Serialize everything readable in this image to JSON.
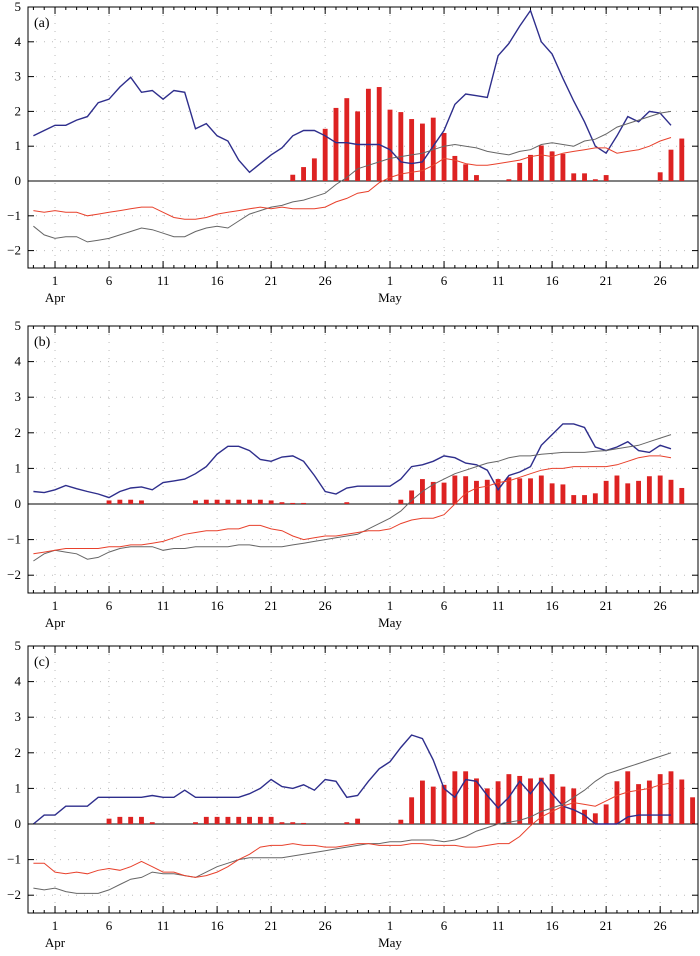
{
  "colors": {
    "blue": "#2e2e8c",
    "red": "#e8412c",
    "gray": "#666666",
    "bar": "#dd2222",
    "grid": "#bbbbbb",
    "axis": "#000000"
  },
  "chart_data": [
    {
      "type": "line+bar",
      "panel_label": "(a)",
      "ylim": [
        -2.5,
        5
      ],
      "yticks": [
        "5",
        "4",
        "3",
        "2",
        "1",
        "0",
        "−1",
        "−2"
      ],
      "xtick_labels": [
        "1",
        "6",
        "11",
        "16",
        "21",
        "26",
        "1",
        "6",
        "11",
        "16",
        "21",
        "26"
      ],
      "month_labels": [
        "Apr",
        "May"
      ],
      "x_days_note": "x index 0 = Mar 30, daily steps to May 29",
      "series": [
        {
          "name": "blue",
          "color": "#2e2e8c",
          "values": [
            1.3,
            1.45,
            1.6,
            1.6,
            1.75,
            1.85,
            2.25,
            2.35,
            2.7,
            2.98,
            2.55,
            2.6,
            2.35,
            2.6,
            2.55,
            1.5,
            1.65,
            1.3,
            1.15,
            0.6,
            0.25,
            0.5,
            0.75,
            0.95,
            1.3,
            1.45,
            1.45,
            1.3,
            1.1,
            1.1,
            1.05,
            1.05,
            1.05,
            0.9,
            0.55,
            0.5,
            0.55,
            1.0,
            1.45,
            2.2,
            2.5,
            2.45,
            2.4,
            3.6,
            3.95,
            4.45,
            4.9,
            4.0,
            3.65,
            2.95,
            2.3,
            1.7,
            1.0,
            0.8,
            1.3,
            1.85,
            1.7,
            2.0,
            1.95,
            1.6
          ]
        },
        {
          "name": "gray",
          "color": "#666666",
          "values": [
            -1.3,
            -1.55,
            -1.65,
            -1.6,
            -1.6,
            -1.75,
            -1.7,
            -1.65,
            -1.55,
            -1.45,
            -1.35,
            -1.4,
            -1.5,
            -1.6,
            -1.6,
            -1.45,
            -1.35,
            -1.3,
            -1.35,
            -1.15,
            -0.95,
            -0.85,
            -0.75,
            -0.7,
            -0.6,
            -0.55,
            -0.45,
            -0.35,
            -0.1,
            0.1,
            0.35,
            0.45,
            0.55,
            0.65,
            0.7,
            0.75,
            0.8,
            0.9,
            1.0,
            1.05,
            1.0,
            0.95,
            0.85,
            0.8,
            0.75,
            0.85,
            0.9,
            1.05,
            1.1,
            1.05,
            1.0,
            1.15,
            1.2,
            1.35,
            1.55,
            1.65,
            1.75,
            1.85,
            1.95,
            2.0
          ]
        },
        {
          "name": "red",
          "color": "#e8412c",
          "values": [
            -0.85,
            -0.9,
            -0.85,
            -0.9,
            -0.9,
            -1.0,
            -0.95,
            -0.9,
            -0.85,
            -0.8,
            -0.75,
            -0.75,
            -0.9,
            -1.05,
            -1.1,
            -1.1,
            -1.05,
            -0.95,
            -0.9,
            -0.85,
            -0.8,
            -0.75,
            -0.8,
            -0.75,
            -0.8,
            -0.8,
            -0.8,
            -0.75,
            -0.6,
            -0.5,
            -0.35,
            -0.3,
            -0.05,
            0.1,
            0.2,
            0.25,
            0.3,
            0.45,
            0.65,
            0.6,
            0.5,
            0.45,
            0.45,
            0.5,
            0.55,
            0.6,
            0.7,
            0.75,
            0.7,
            0.8,
            0.85,
            0.9,
            0.95,
            0.95,
            0.8,
            0.85,
            0.9,
            1.0,
            1.15,
            1.25
          ]
        }
      ],
      "bars": [
        0,
        0,
        0,
        0,
        0,
        0,
        0,
        0,
        0,
        0,
        0,
        0,
        0,
        0,
        0,
        0,
        0,
        0,
        0,
        0,
        0,
        0,
        0,
        0,
        0.18,
        0.4,
        0.65,
        1.5,
        2.1,
        2.38,
        2.0,
        2.65,
        2.7,
        2.05,
        1.98,
        1.78,
        1.65,
        1.82,
        1.38,
        0.72,
        0.48,
        0.17,
        0,
        0,
        0.05,
        0.52,
        0.75,
        1.02,
        0.85,
        0.78,
        0.22,
        0.22,
        0.05,
        0.17,
        0,
        0,
        0,
        0,
        0.25,
        0.9,
        1.22
      ]
    },
    {
      "type": "line+bar",
      "panel_label": "(b)",
      "ylim": [
        -2.5,
        5
      ],
      "yticks": [
        "5",
        "4",
        "3",
        "2",
        "1",
        "0",
        "−1",
        "−2"
      ],
      "xtick_labels": [
        "1",
        "6",
        "11",
        "16",
        "21",
        "26",
        "1",
        "6",
        "11",
        "16",
        "21",
        "26"
      ],
      "month_labels": [
        "Apr",
        "May"
      ],
      "series": [
        {
          "name": "blue",
          "color": "#2e2e8c",
          "values": [
            0.35,
            0.32,
            0.4,
            0.52,
            0.43,
            0.35,
            0.28,
            0.18,
            0.35,
            0.45,
            0.48,
            0.4,
            0.6,
            0.65,
            0.7,
            0.85,
            1.05,
            1.4,
            1.62,
            1.62,
            1.5,
            1.25,
            1.2,
            1.32,
            1.35,
            1.2,
            0.8,
            0.35,
            0.28,
            0.45,
            0.5,
            0.5,
            0.5,
            0.5,
            0.7,
            1.05,
            1.1,
            1.2,
            1.35,
            1.3,
            1.15,
            1.1,
            0.95,
            0.4,
            0.8,
            0.9,
            1.05,
            1.65,
            1.95,
            2.25,
            2.25,
            2.15,
            1.6,
            1.5,
            1.6,
            1.75,
            1.5,
            1.45,
            1.65,
            1.55
          ]
        },
        {
          "name": "gray",
          "color": "#666666",
          "values": [
            -1.6,
            -1.4,
            -1.3,
            -1.35,
            -1.4,
            -1.55,
            -1.5,
            -1.35,
            -1.25,
            -1.2,
            -1.2,
            -1.2,
            -1.3,
            -1.25,
            -1.25,
            -1.2,
            -1.2,
            -1.2,
            -1.2,
            -1.15,
            -1.15,
            -1.2,
            -1.2,
            -1.2,
            -1.15,
            -1.1,
            -1.05,
            -1.0,
            -0.95,
            -0.9,
            -0.85,
            -0.7,
            -0.55,
            -0.4,
            -0.2,
            0.1,
            0.35,
            0.55,
            0.7,
            0.85,
            0.95,
            1.05,
            1.15,
            1.2,
            1.3,
            1.35,
            1.35,
            1.4,
            1.42,
            1.45,
            1.45,
            1.45,
            1.48,
            1.5,
            1.55,
            1.6,
            1.65,
            1.75,
            1.85,
            1.95
          ]
        },
        {
          "name": "red",
          "color": "#e8412c",
          "values": [
            -1.4,
            -1.35,
            -1.3,
            -1.25,
            -1.25,
            -1.25,
            -1.25,
            -1.2,
            -1.2,
            -1.15,
            -1.15,
            -1.1,
            -1.05,
            -0.95,
            -0.85,
            -0.8,
            -0.75,
            -0.75,
            -0.7,
            -0.7,
            -0.6,
            -0.6,
            -0.7,
            -0.75,
            -0.9,
            -1.0,
            -0.95,
            -0.9,
            -0.9,
            -0.85,
            -0.8,
            -0.75,
            -0.75,
            -0.7,
            -0.55,
            -0.45,
            -0.4,
            -0.4,
            -0.3,
            0.0,
            0.3,
            0.45,
            0.5,
            0.6,
            0.65,
            0.75,
            0.85,
            0.95,
            1.0,
            1.0,
            1.05,
            1.05,
            1.05,
            1.05,
            1.1,
            1.2,
            1.3,
            1.35,
            1.35,
            1.3
          ]
        }
      ],
      "bars": [
        0,
        0,
        0,
        0,
        0,
        0,
        0,
        0.1,
        0.12,
        0.12,
        0.1,
        0,
        0,
        0,
        0,
        0.1,
        0.12,
        0.12,
        0.12,
        0.12,
        0.12,
        0.12,
        0.1,
        0.05,
        0.03,
        0.03,
        0,
        0,
        0,
        0.05,
        0,
        0,
        0,
        0,
        0.12,
        0.38,
        0.7,
        0.62,
        0.6,
        0.8,
        0.78,
        0.65,
        0.68,
        0.7,
        0.75,
        0.72,
        0.72,
        0.8,
        0.58,
        0.55,
        0.25,
        0.25,
        0.3,
        0.65,
        0.8,
        0.58,
        0.65,
        0.78,
        0.8,
        0.68,
        0.45
      ]
    },
    {
      "type": "line+bar",
      "panel_label": "(c)",
      "ylim": [
        -2.5,
        5
      ],
      "yticks": [
        "5",
        "4",
        "3",
        "2",
        "1",
        "0",
        "−1",
        "−2"
      ],
      "xtick_labels": [
        "1",
        "6",
        "11",
        "16",
        "21",
        "26",
        "1",
        "6",
        "11",
        "16",
        "21",
        "26"
      ],
      "month_labels": [
        "Apr",
        "May"
      ],
      "series": [
        {
          "name": "blue",
          "color": "#2e2e8c",
          "values": [
            0.0,
            0.25,
            0.25,
            0.5,
            0.5,
            0.5,
            0.75,
            0.75,
            0.75,
            0.75,
            0.75,
            0.8,
            0.75,
            0.75,
            0.95,
            0.75,
            0.75,
            0.75,
            0.75,
            0.75,
            0.85,
            1.0,
            1.25,
            1.05,
            1.0,
            1.1,
            0.95,
            1.25,
            1.2,
            0.75,
            0.8,
            1.2,
            1.55,
            1.75,
            2.15,
            2.5,
            2.4,
            1.8,
            1.0,
            0.75,
            1.25,
            1.2,
            0.8,
            0.45,
            0.75,
            1.2,
            0.85,
            1.25,
            0.85,
            0.5,
            0.4,
            0.25,
            0.0,
            0.0,
            0.0,
            0.2,
            0.25,
            0.25,
            0.25,
            0.25
          ]
        },
        {
          "name": "gray",
          "color": "#666666",
          "values": [
            -1.8,
            -1.85,
            -1.8,
            -1.9,
            -1.95,
            -1.95,
            -1.95,
            -1.85,
            -1.7,
            -1.55,
            -1.5,
            -1.35,
            -1.4,
            -1.4,
            -1.45,
            -1.5,
            -1.35,
            -1.2,
            -1.1,
            -1.0,
            -0.95,
            -0.95,
            -0.95,
            -0.95,
            -0.9,
            -0.85,
            -0.8,
            -0.75,
            -0.7,
            -0.65,
            -0.6,
            -0.55,
            -0.55,
            -0.5,
            -0.5,
            -0.45,
            -0.45,
            -0.45,
            -0.5,
            -0.45,
            -0.35,
            -0.2,
            -0.1,
            0.0,
            0.05,
            0.1,
            0.2,
            0.35,
            0.45,
            0.55,
            0.75,
            0.95,
            1.2,
            1.4,
            1.5,
            1.6,
            1.7,
            1.8,
            1.9,
            2.0
          ]
        },
        {
          "name": "red",
          "color": "#e8412c",
          "values": [
            -1.1,
            -1.1,
            -1.35,
            -1.4,
            -1.35,
            -1.4,
            -1.3,
            -1.25,
            -1.3,
            -1.2,
            -1.05,
            -1.2,
            -1.35,
            -1.35,
            -1.45,
            -1.5,
            -1.45,
            -1.35,
            -1.2,
            -1.0,
            -0.85,
            -0.65,
            -0.6,
            -0.6,
            -0.55,
            -0.6,
            -0.6,
            -0.65,
            -0.65,
            -0.6,
            -0.55,
            -0.55,
            -0.6,
            -0.6,
            -0.6,
            -0.55,
            -0.55,
            -0.6,
            -0.6,
            -0.6,
            -0.65,
            -0.65,
            -0.6,
            -0.55,
            -0.55,
            -0.35,
            -0.05,
            0.2,
            0.35,
            0.5,
            0.6,
            0.55,
            0.5,
            0.65,
            0.8,
            0.9,
            0.95,
            1.0,
            1.1,
            1.15
          ]
        }
      ],
      "bars": [
        0,
        0,
        0,
        0,
        0,
        0,
        0,
        0.15,
        0.2,
        0.2,
        0.2,
        0.05,
        0,
        0,
        0,
        0.05,
        0.2,
        0.2,
        0.2,
        0.2,
        0.2,
        0.2,
        0.2,
        0.05,
        0.05,
        0.03,
        0,
        0,
        0,
        0.05,
        0.15,
        0,
        0,
        0,
        0.12,
        0.75,
        1.22,
        1.05,
        1.1,
        1.48,
        1.48,
        1.28,
        1.0,
        1.2,
        1.4,
        1.35,
        1.28,
        1.3,
        1.4,
        1.05,
        1.0,
        0.4,
        0.3,
        0.55,
        1.2,
        1.48,
        1.12,
        1.22,
        1.4,
        1.48,
        1.25,
        0.75
      ]
    }
  ]
}
